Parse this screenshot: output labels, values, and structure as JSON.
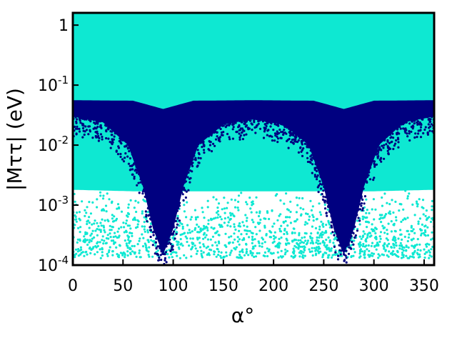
{
  "chart_data": {
    "type": "scatter",
    "x_scale": "linear",
    "y_scale": "log",
    "xlim": [
      0,
      360
    ],
    "ylim": [
      0.0001,
      1.6
    ],
    "xlabel": "α°",
    "ylabel": "|Mττ| (eV)",
    "x_ticks": [
      {
        "value": 0,
        "label": "0"
      },
      {
        "value": 50,
        "label": "50"
      },
      {
        "value": 100,
        "label": "100"
      },
      {
        "value": 150,
        "label": "150"
      },
      {
        "value": 200,
        "label": "200"
      },
      {
        "value": 250,
        "label": "250"
      },
      {
        "value": 300,
        "label": "300"
      },
      {
        "value": 350,
        "label": "350"
      }
    ],
    "y_ticks": [
      {
        "value": 1,
        "label": "1",
        "base": "",
        "exp": ""
      },
      {
        "value": 0.1,
        "label": "",
        "base": "10",
        "exp": "-1"
      },
      {
        "value": 0.01,
        "label": "",
        "base": "10",
        "exp": "-2"
      },
      {
        "value": 0.001,
        "label": "",
        "base": "10",
        "exp": "-3"
      },
      {
        "value": 0.0001,
        "label": "",
        "base": "10",
        "exp": "-4"
      }
    ],
    "grid": false,
    "legend": "none",
    "series": [
      {
        "color": "#0ee8d2",
        "dense_band_upper": [
          [
            0,
            1.6
          ],
          [
            360,
            1.6
          ]
        ],
        "dense_band_lower": [
          [
            0,
            0.0018
          ],
          [
            60,
            0.0017
          ],
          [
            120,
            0.0017
          ],
          [
            180,
            0.0017
          ],
          [
            240,
            0.0017
          ],
          [
            300,
            0.0017
          ],
          [
            360,
            0.0018
          ]
        ],
        "sparse_scatter_floor": 0.00013
      },
      {
        "color": "#000080",
        "upper_edge": [
          [
            0,
            0.056
          ],
          [
            60,
            0.055
          ],
          [
            90,
            0.04
          ],
          [
            120,
            0.055
          ],
          [
            180,
            0.056
          ],
          [
            240,
            0.055
          ],
          [
            270,
            0.04
          ],
          [
            300,
            0.055
          ],
          [
            360,
            0.056
          ]
        ],
        "lower_edge": [
          [
            0,
            0.03
          ],
          [
            30,
            0.024
          ],
          [
            55,
            0.01
          ],
          [
            70,
            0.002
          ],
          [
            80,
            0.0004
          ],
          [
            90,
            0.00015
          ],
          [
            100,
            0.0004
          ],
          [
            110,
            0.002
          ],
          [
            125,
            0.01
          ],
          [
            150,
            0.022
          ],
          [
            178,
            0.027
          ],
          [
            210,
            0.022
          ],
          [
            235,
            0.01
          ],
          [
            250,
            0.002
          ],
          [
            260,
            0.0004
          ],
          [
            270,
            0.00015
          ],
          [
            280,
            0.0004
          ],
          [
            290,
            0.002
          ],
          [
            305,
            0.01
          ],
          [
            330,
            0.024
          ],
          [
            360,
            0.03
          ]
        ]
      }
    ]
  }
}
